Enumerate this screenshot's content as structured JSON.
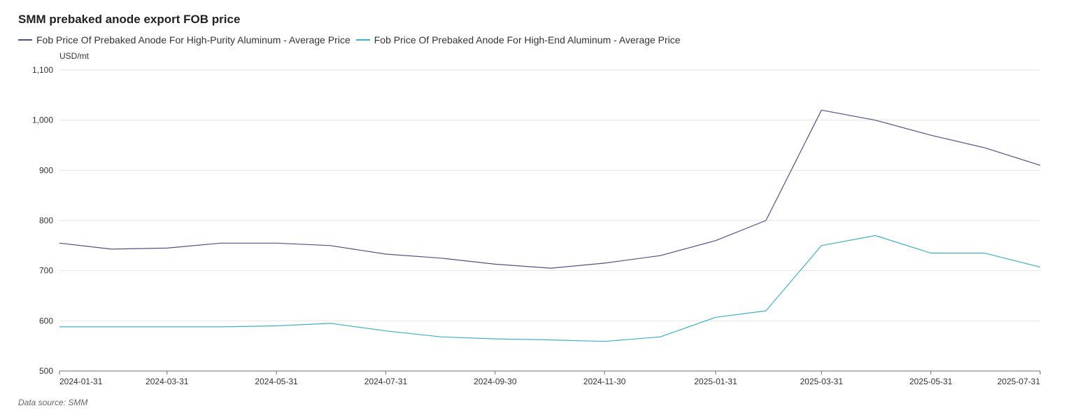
{
  "chart_data": {
    "type": "line",
    "title": "SMM prebaked anode export FOB price",
    "ylabel": "USD/mt",
    "xlabel": "",
    "ylim": [
      500,
      1100
    ],
    "yticks": [
      "500",
      "600",
      "700",
      "800",
      "900",
      "1,000",
      "1,100"
    ],
    "ytick_values": [
      500,
      600,
      700,
      800,
      900,
      1000,
      1100
    ],
    "grid": true,
    "legend_position": "top-left",
    "x": [
      "2024-01-31",
      "2024-02-29",
      "2024-03-31",
      "2024-04-30",
      "2024-05-31",
      "2024-06-30",
      "2024-07-31",
      "2024-08-31",
      "2024-09-30",
      "2024-10-31",
      "2024-11-30",
      "2024-12-31",
      "2025-01-31",
      "2025-02-28",
      "2025-03-31",
      "2025-04-30",
      "2025-05-31",
      "2025-06-30",
      "2025-07-31"
    ],
    "xtick_labels": [
      "2024-01-31",
      "2024-03-31",
      "2024-05-31",
      "2024-07-31",
      "2024-09-30",
      "2024-11-30",
      "2025-01-31",
      "2025-03-31",
      "2025-05-31",
      "2025-07-31"
    ],
    "series": [
      {
        "name": "Fob Price Of Prebaked Anode For High-Purity Aluminum - Average Price",
        "color": "#4b5387",
        "values": [
          755,
          743,
          745,
          755,
          755,
          750,
          733,
          725,
          713,
          705,
          715,
          730,
          760,
          800,
          1020,
          1000,
          970,
          945,
          910
        ]
      },
      {
        "name": "Fob Price Of Prebaked Anode For High-End Aluminum - Average Price",
        "color": "#3fb1c8",
        "values": [
          588,
          588,
          588,
          588,
          590,
          595,
          580,
          568,
          564,
          562,
          559,
          568,
          607,
          620,
          750,
          770,
          735,
          735,
          707
        ]
      }
    ]
  },
  "source_label": "Data source:  SMM",
  "colors": {
    "grid": "#e6e6e6",
    "axis": "#6e6e6e"
  }
}
